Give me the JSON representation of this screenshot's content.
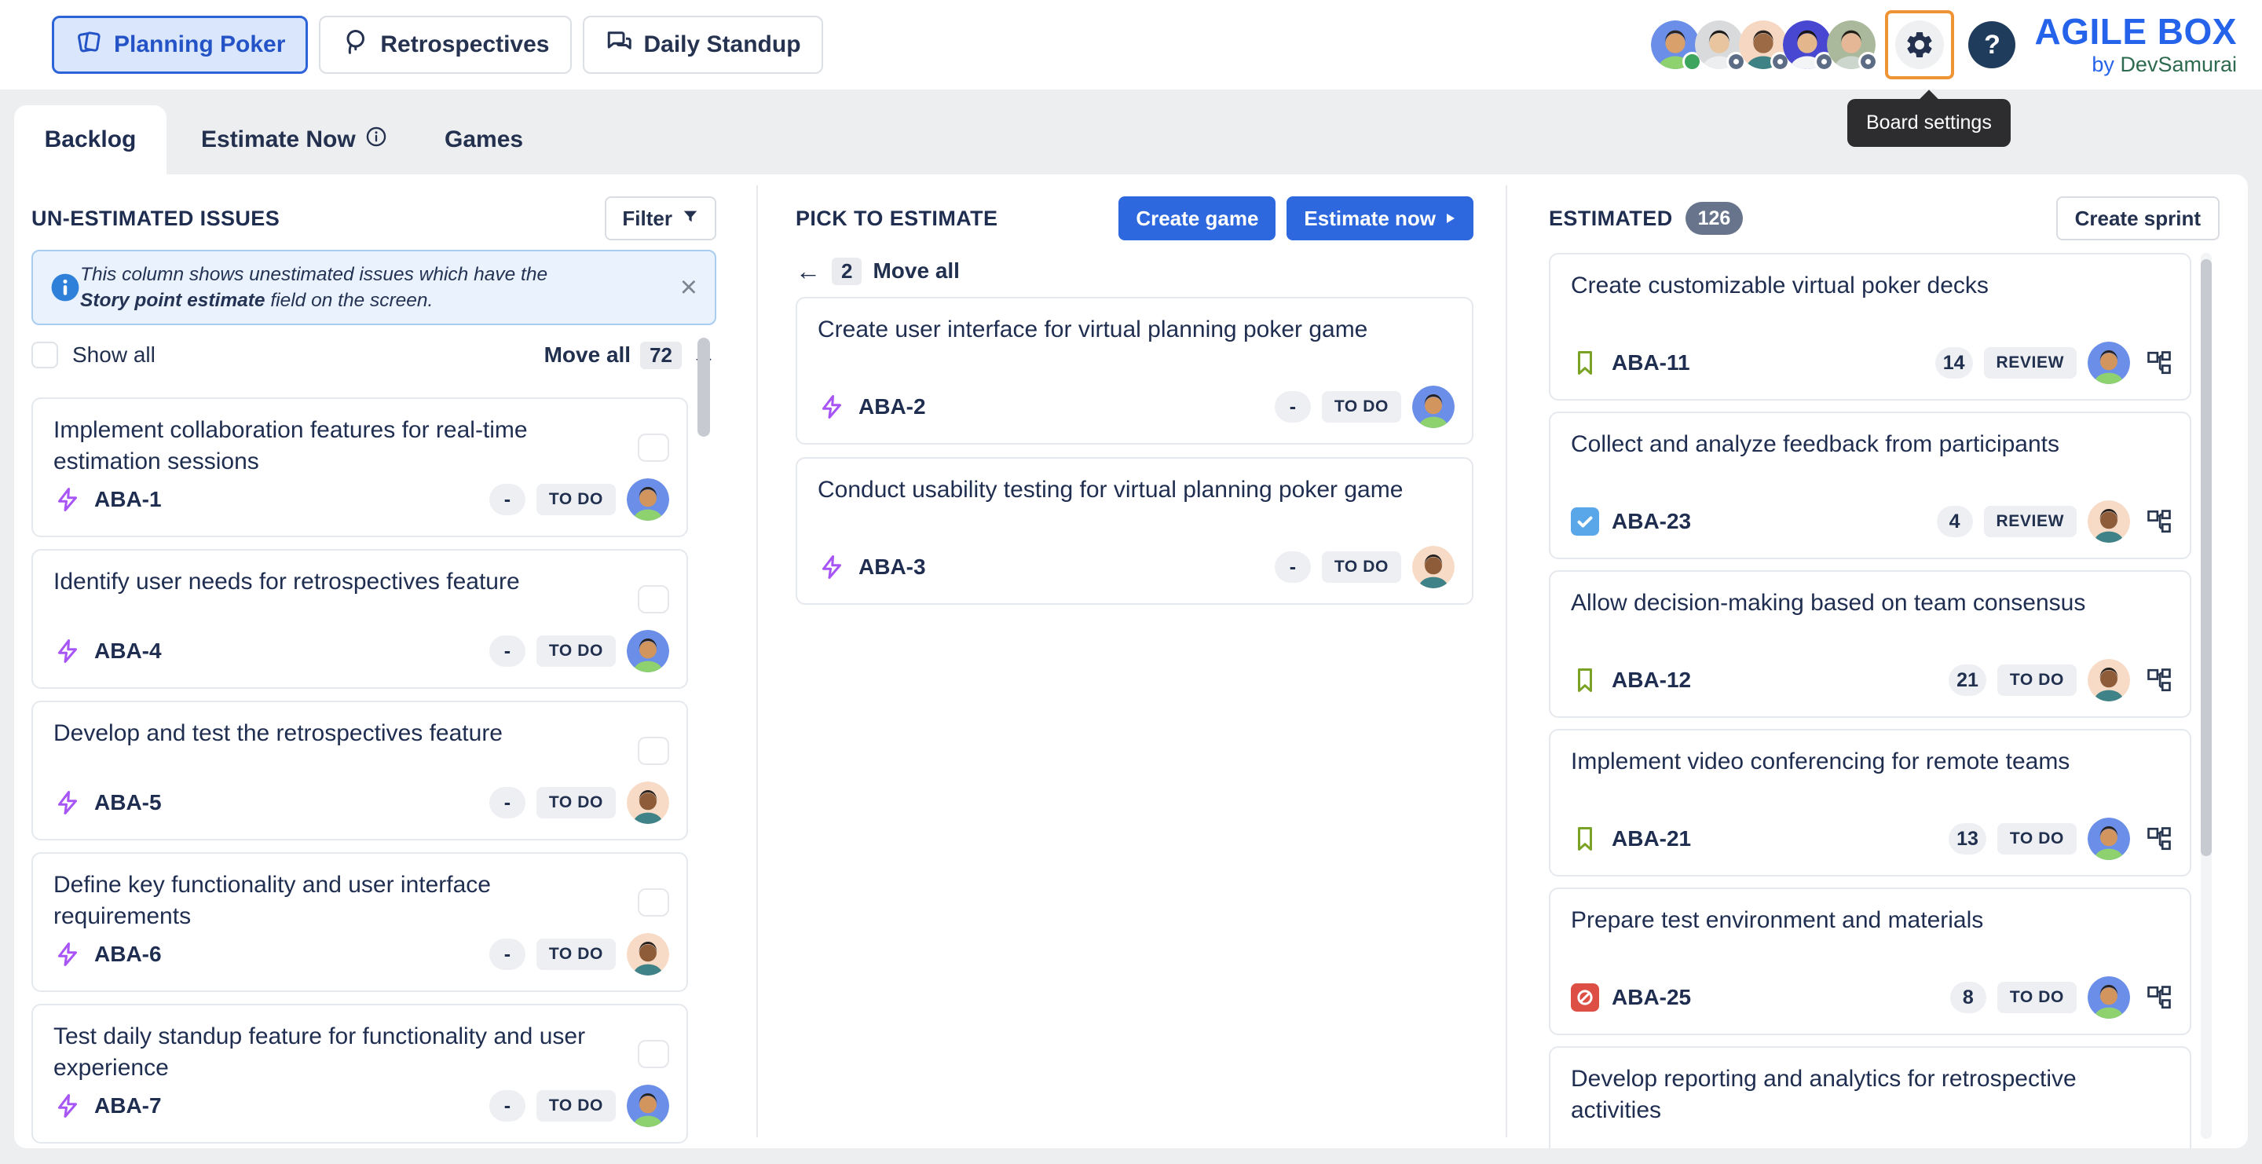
{
  "header": {
    "nav": [
      {
        "label": "Planning Poker",
        "active": true
      },
      {
        "label": "Retrospectives",
        "active": false
      },
      {
        "label": "Daily Standup",
        "active": false
      }
    ],
    "users": [
      {
        "id": "user-1",
        "bg": "#6b8fe8",
        "shirt": "#8ed16f",
        "skin": "#d9a06b",
        "hair": "#2a2320",
        "status": "online"
      },
      {
        "id": "user-2",
        "bg": "#d8dadb",
        "shirt": "#eceef0",
        "skin": "#e8c49f",
        "hair": "#1e1b19",
        "status": "ring"
      },
      {
        "id": "user-3",
        "bg": "#f6d8c2",
        "shirt": "#3e8286",
        "skin": "#9c6b45",
        "hair": "#2a2320",
        "status": "ring"
      },
      {
        "id": "user-4",
        "bg": "#4747d1",
        "shirt": "#f3f4f6",
        "skin": "#e3b68b",
        "hair": "#17140f",
        "status": "ring"
      },
      {
        "id": "user-5",
        "bg": "#aab99b",
        "shirt": "#cdd6cd",
        "skin": "#e6b796",
        "hair": "#241d18",
        "status": "ring"
      }
    ],
    "settings_tooltip": "Board settings",
    "help_label": "?",
    "brand": {
      "title": "AGILE BOX",
      "byline_prefix": "by",
      "byline_name": "DevSamurai"
    }
  },
  "tabs": [
    {
      "label": "Backlog",
      "active": true
    },
    {
      "label": "Estimate Now",
      "has_info": true,
      "active": false
    },
    {
      "label": "Games",
      "active": false
    }
  ],
  "avatars": {
    "blue": {
      "bg": "#6b8fe8",
      "shirt": "#8ed16f",
      "skin": "#d2955e",
      "hair": "#262220"
    },
    "peach": {
      "bg": "#f7dbc6",
      "shirt": "#3f8287",
      "skin": "#8e5c39",
      "hair": "#262220"
    }
  },
  "unestimated": {
    "title": "UN-ESTIMATED ISSUES",
    "filter_label": "Filter",
    "banner": {
      "text_before": "This column shows unestimated issues which have the ",
      "text_bold": "Story point estimate",
      "text_after": " field on the screen."
    },
    "show_all_label": "Show all",
    "move_all_label": "Move all",
    "move_all_count": "72",
    "issues": [
      {
        "title": "Implement collaboration features for real-time estimation sessions",
        "key": "ABA-1",
        "type": "story",
        "points": "-",
        "status": "TO DO",
        "avatar": "blue"
      },
      {
        "title": "Identify user needs for retrospectives feature",
        "key": "ABA-4",
        "type": "story",
        "points": "-",
        "status": "TO DO",
        "avatar": "blue"
      },
      {
        "title": "Develop and test the retrospectives feature",
        "key": "ABA-5",
        "type": "story",
        "points": "-",
        "status": "TO DO",
        "avatar": "peach"
      },
      {
        "title": "Define key functionality and user interface requirements",
        "key": "ABA-6",
        "type": "story",
        "points": "-",
        "status": "TO DO",
        "avatar": "peach"
      },
      {
        "title": "Test daily standup feature for functionality and user experience",
        "key": "ABA-7",
        "type": "story",
        "points": "-",
        "status": "TO DO",
        "avatar": "blue"
      }
    ]
  },
  "pick": {
    "title": "PICK TO ESTIMATE",
    "create_game_label": "Create game",
    "estimate_now_label": "Estimate now",
    "move_all_label": "Move all",
    "move_all_count": "2",
    "issues": [
      {
        "title": "Create user interface for virtual planning poker game",
        "key": "ABA-2",
        "type": "story",
        "points": "-",
        "status": "TO DO",
        "avatar": "blue"
      },
      {
        "title": "Conduct usability testing for virtual planning poker game",
        "key": "ABA-3",
        "type": "story",
        "points": "-",
        "status": "TO DO",
        "avatar": "peach"
      }
    ]
  },
  "estimated": {
    "title": "ESTIMATED",
    "count": "126",
    "create_sprint_label": "Create sprint",
    "issues": [
      {
        "title": "Create customizable virtual poker decks",
        "key": "ABA-11",
        "type": "story-bookmark",
        "points": "14",
        "status": "REVIEW",
        "avatar": "blue",
        "subtask": true
      },
      {
        "title": "Collect and analyze feedback from participants",
        "key": "ABA-23",
        "type": "task",
        "points": "4",
        "status": "REVIEW",
        "avatar": "peach",
        "subtask": true
      },
      {
        "title": "Allow decision-making based on team consensus",
        "key": "ABA-12",
        "type": "story-bookmark",
        "points": "21",
        "status": "TO DO",
        "avatar": "peach",
        "subtask": true
      },
      {
        "title": "Implement video conferencing for remote teams",
        "key": "ABA-21",
        "type": "story-bookmark",
        "points": "13",
        "status": "TO DO",
        "avatar": "blue",
        "subtask": true
      },
      {
        "title": "Prepare test environment and materials",
        "key": "ABA-25",
        "type": "blocked",
        "points": "8",
        "status": "TO DO",
        "avatar": "blue",
        "subtask": true
      },
      {
        "title": "Develop reporting and analytics for retrospective activities",
        "partial": true
      }
    ]
  },
  "icons": {
    "arrow_right": "→",
    "arrow_left": "←",
    "close": "×"
  },
  "colors": {
    "accent_blue": "#2e68df",
    "navy_text": "#1f2e50",
    "story_purple": "#a855f7",
    "story_green": "#7aa326",
    "task_blue": "#59a7e8",
    "blocked_red": "#dd4f44",
    "focus_orange": "#ee9434",
    "count_slate": "#68748b",
    "logo_blue": "#2563eb",
    "logo_green": "#2d6a4f",
    "banner_bg": "#e9f2fd"
  }
}
